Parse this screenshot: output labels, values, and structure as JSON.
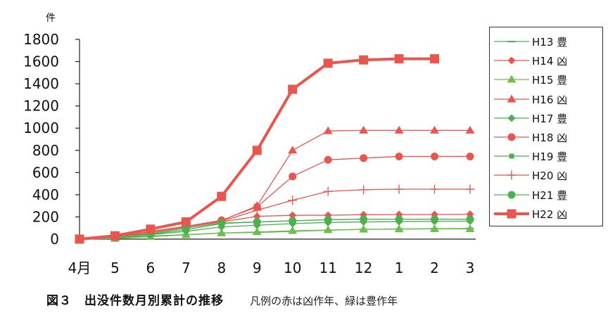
{
  "chart_data": {
    "type": "line",
    "unit_label": "件",
    "categories": [
      "4月",
      "5",
      "6",
      "7",
      "8",
      "9",
      "10",
      "11",
      "12",
      "1",
      "2",
      "3"
    ],
    "ylim": [
      0,
      1800
    ],
    "yticks": [
      "0",
      "200",
      "400",
      "600",
      "800",
      "1000",
      "1200",
      "1400",
      "1600",
      "1800"
    ],
    "grid": false,
    "legend_position": "right",
    "series": [
      {
        "name": "H13 豊",
        "color": "#4caf50",
        "marker": "dash",
        "values": [
          0,
          8,
          28,
          40,
          55,
          60,
          70,
          80,
          88,
          92,
          94,
          96
        ]
      },
      {
        "name": "H14 凶",
        "color": "#e8564f",
        "marker": "diamond",
        "values": [
          0,
          20,
          60,
          110,
          155,
          205,
          215,
          215,
          220,
          222,
          222,
          224
        ]
      },
      {
        "name": "H15 豊",
        "color": "#6fbf50",
        "marker": "triangle",
        "values": [
          0,
          5,
          22,
          38,
          55,
          65,
          75,
          82,
          88,
          90,
          92,
          92
        ]
      },
      {
        "name": "H16 凶",
        "color": "#e8564f",
        "marker": "triangle",
        "values": [
          0,
          20,
          65,
          115,
          165,
          300,
          800,
          975,
          980,
          980,
          980,
          980
        ]
      },
      {
        "name": "H17 豊",
        "color": "#4caf50",
        "marker": "diamond",
        "values": [
          0,
          12,
          40,
          70,
          110,
          125,
          140,
          150,
          155,
          158,
          160,
          162
        ]
      },
      {
        "name": "H18 凶",
        "color": "#e8564f",
        "marker": "circle",
        "values": [
          0,
          20,
          70,
          115,
          170,
          290,
          565,
          715,
          730,
          745,
          745,
          745
        ]
      },
      {
        "name": "H19 豊",
        "color": "#4caf50",
        "marker": "square",
        "values": [
          0,
          12,
          45,
          85,
          140,
          155,
          165,
          175,
          180,
          180,
          180,
          180
        ]
      },
      {
        "name": "H20 凶",
        "color": "#e8564f",
        "marker": "plus",
        "values": [
          0,
          20,
          60,
          110,
          160,
          260,
          350,
          430,
          445,
          450,
          450,
          450
        ]
      },
      {
        "name": "H21 豊",
        "color": "#4caf50",
        "marker": "circle",
        "values": [
          0,
          15,
          50,
          100,
          145,
          155,
          165,
          175,
          180,
          180,
          180,
          180
        ]
      },
      {
        "name": "H22 凶",
        "color": "#e8564f",
        "marker": "square",
        "values": [
          0,
          30,
          90,
          155,
          385,
          800,
          1350,
          1585,
          1615,
          1625,
          1625,
          null
        ]
      }
    ]
  },
  "caption": {
    "title": "図３　出没件数月別累計の推移",
    "note": "凡例の赤は凶作年、緑は豊作年"
  }
}
